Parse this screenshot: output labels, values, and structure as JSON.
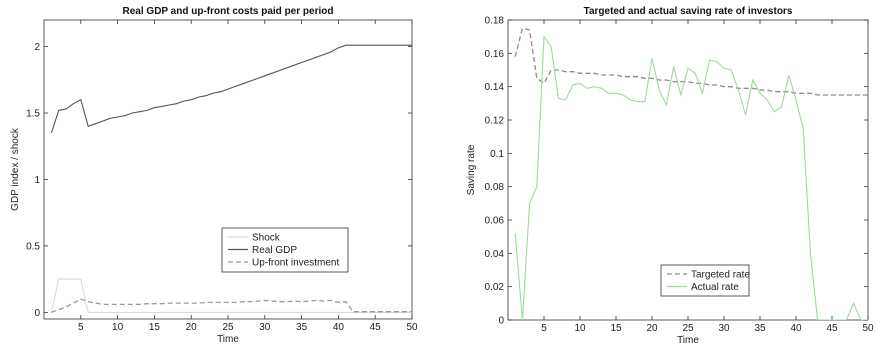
{
  "chart_data": [
    {
      "type": "line",
      "title": "Real GDP and up-front costs paid per period",
      "xlabel": "Time",
      "ylabel": "GDP index / shock",
      "xlim": [
        0,
        50
      ],
      "ylim": [
        -0.05,
        2.2
      ],
      "xticks": [
        5,
        10,
        15,
        20,
        25,
        30,
        35,
        40,
        45,
        50
      ],
      "yticks": [
        0,
        0.5,
        1,
        1.5,
        2
      ],
      "ytick_labels": [
        "0",
        "0.5",
        "1",
        "1.5",
        "2"
      ],
      "legend_position": "center-right",
      "series": [
        {
          "name": "Shock",
          "color": "#d9d9d9",
          "style": "solid",
          "x": [
            1,
            2,
            3,
            4,
            5,
            6,
            7,
            8,
            9,
            10,
            11,
            12,
            13,
            14,
            15,
            16,
            17,
            18,
            19,
            20,
            21,
            22,
            23,
            24,
            25,
            26,
            27,
            28,
            29,
            30,
            31,
            32,
            33,
            34,
            35,
            36,
            37,
            38,
            39,
            40,
            41,
            42,
            43,
            44,
            45,
            46,
            47,
            48,
            49,
            50
          ],
          "values": [
            0,
            0.25,
            0.25,
            0.25,
            0.25,
            0,
            0,
            0,
            0,
            0,
            0,
            0,
            0,
            0,
            0,
            0,
            0,
            0,
            0,
            0,
            0,
            0,
            0,
            0,
            0,
            0,
            0,
            0,
            0,
            0,
            0,
            0,
            0,
            0,
            0,
            0,
            0,
            0,
            0,
            0,
            0,
            0,
            0,
            0,
            0,
            0,
            0,
            0,
            0,
            0
          ]
        },
        {
          "name": "Real GDP",
          "color": "#555555",
          "style": "solid",
          "x": [
            1,
            2,
            3,
            4,
            5,
            6,
            7,
            8,
            9,
            10,
            11,
            12,
            13,
            14,
            15,
            16,
            17,
            18,
            19,
            20,
            21,
            22,
            23,
            24,
            25,
            26,
            27,
            28,
            29,
            30,
            31,
            32,
            33,
            34,
            35,
            36,
            37,
            38,
            39,
            40,
            41,
            42,
            43,
            44,
            45,
            46,
            47,
            48,
            49,
            50
          ],
          "values": [
            1.35,
            1.52,
            1.53,
            1.57,
            1.6,
            1.4,
            1.42,
            1.44,
            1.46,
            1.47,
            1.48,
            1.5,
            1.51,
            1.52,
            1.54,
            1.55,
            1.56,
            1.57,
            1.59,
            1.6,
            1.62,
            1.63,
            1.65,
            1.66,
            1.68,
            1.7,
            1.72,
            1.74,
            1.76,
            1.78,
            1.8,
            1.82,
            1.84,
            1.86,
            1.88,
            1.9,
            1.92,
            1.94,
            1.96,
            1.99,
            2.01,
            2.01,
            2.01,
            2.01,
            2.01,
            2.01,
            2.01,
            2.01,
            2.01,
            2.01
          ]
        },
        {
          "name": "Up-front investment",
          "color": "#9a9a9a",
          "style": "dashed",
          "x": [
            1,
            2,
            3,
            4,
            5,
            6,
            7,
            8,
            9,
            10,
            11,
            12,
            13,
            14,
            15,
            16,
            17,
            18,
            19,
            20,
            21,
            22,
            23,
            24,
            25,
            26,
            27,
            28,
            29,
            30,
            31,
            32,
            33,
            34,
            35,
            36,
            37,
            38,
            39,
            40,
            41,
            42,
            43,
            44,
            45,
            46,
            47,
            48,
            49,
            50
          ],
          "values": [
            0,
            0.02,
            0.04,
            0.07,
            0.1,
            0.08,
            0.07,
            0.06,
            0.06,
            0.06,
            0.06,
            0.06,
            0.06,
            0.065,
            0.065,
            0.065,
            0.07,
            0.07,
            0.07,
            0.07,
            0.07,
            0.075,
            0.075,
            0.075,
            0.075,
            0.075,
            0.08,
            0.08,
            0.085,
            0.09,
            0.085,
            0.08,
            0.08,
            0.085,
            0.08,
            0.085,
            0.09,
            0.085,
            0.09,
            0.075,
            0.08,
            0.005,
            0.005,
            0.005,
            0.005,
            0.005,
            0.005,
            0.005,
            0.005,
            0.005
          ]
        }
      ]
    },
    {
      "type": "line",
      "title": "Targeted and actual saving rate of investors",
      "xlabel": "Time",
      "ylabel": "Saving rate",
      "xlim": [
        0,
        50
      ],
      "ylim": [
        0,
        0.18
      ],
      "xticks": [
        5,
        10,
        15,
        20,
        25,
        30,
        35,
        40,
        45,
        50
      ],
      "yticks": [
        0,
        0.02,
        0.04,
        0.06,
        0.08,
        0.1,
        0.12,
        0.14,
        0.16,
        0.18
      ],
      "ytick_labels": [
        "0",
        "0.02",
        "0.04",
        "0.06",
        "0.08",
        "0.1",
        "0.12",
        "0.14",
        "0.16",
        "0.18"
      ],
      "legend_position": "bottom-left",
      "series": [
        {
          "name": "Targeted rate",
          "color": "#8c8c8c",
          "style": "dashed",
          "x": [
            1,
            2,
            3,
            4,
            5,
            6,
            7,
            8,
            9,
            10,
            11,
            12,
            13,
            14,
            15,
            16,
            17,
            18,
            19,
            20,
            21,
            22,
            23,
            24,
            25,
            26,
            27,
            28,
            29,
            30,
            31,
            32,
            33,
            34,
            35,
            36,
            37,
            38,
            39,
            40,
            41,
            42,
            43,
            44,
            45,
            46,
            47,
            48,
            49,
            50
          ],
          "values": [
            0.158,
            0.175,
            0.174,
            0.145,
            0.142,
            0.15,
            0.15,
            0.149,
            0.149,
            0.148,
            0.148,
            0.148,
            0.147,
            0.147,
            0.147,
            0.146,
            0.146,
            0.146,
            0.145,
            0.145,
            0.144,
            0.144,
            0.143,
            0.143,
            0.143,
            0.142,
            0.142,
            0.141,
            0.141,
            0.14,
            0.14,
            0.139,
            0.139,
            0.139,
            0.138,
            0.138,
            0.137,
            0.137,
            0.137,
            0.136,
            0.136,
            0.136,
            0.135,
            0.135,
            0.135,
            0.135,
            0.135,
            0.135,
            0.135,
            0.135
          ]
        },
        {
          "name": "Actual rate",
          "color": "#9fd99f",
          "style": "solid",
          "x": [
            1,
            2,
            3,
            4,
            5,
            6,
            7,
            8,
            9,
            10,
            11,
            12,
            13,
            14,
            15,
            16,
            17,
            18,
            19,
            20,
            21,
            22,
            23,
            24,
            25,
            26,
            27,
            28,
            29,
            30,
            31,
            32,
            33,
            34,
            35,
            36,
            37,
            38,
            39,
            40,
            41,
            42,
            43,
            44,
            45,
            46,
            47,
            48,
            49,
            50
          ],
          "values": [
            0.052,
            0,
            0.07,
            0.08,
            0.17,
            0.164,
            0.133,
            0.132,
            0.141,
            0.142,
            0.139,
            0.14,
            0.139,
            0.136,
            0.136,
            0.135,
            0.132,
            0.131,
            0.131,
            0.157,
            0.138,
            0.129,
            0.152,
            0.135,
            0.151,
            0.148,
            0.136,
            0.156,
            0.155,
            0.151,
            0.15,
            0.138,
            0.123,
            0.144,
            0.136,
            0.132,
            0.125,
            0.128,
            0.147,
            0.132,
            0.115,
            0.04,
            0,
            0,
            0,
            0,
            0,
            0.01,
            0,
            0
          ]
        }
      ]
    }
  ]
}
